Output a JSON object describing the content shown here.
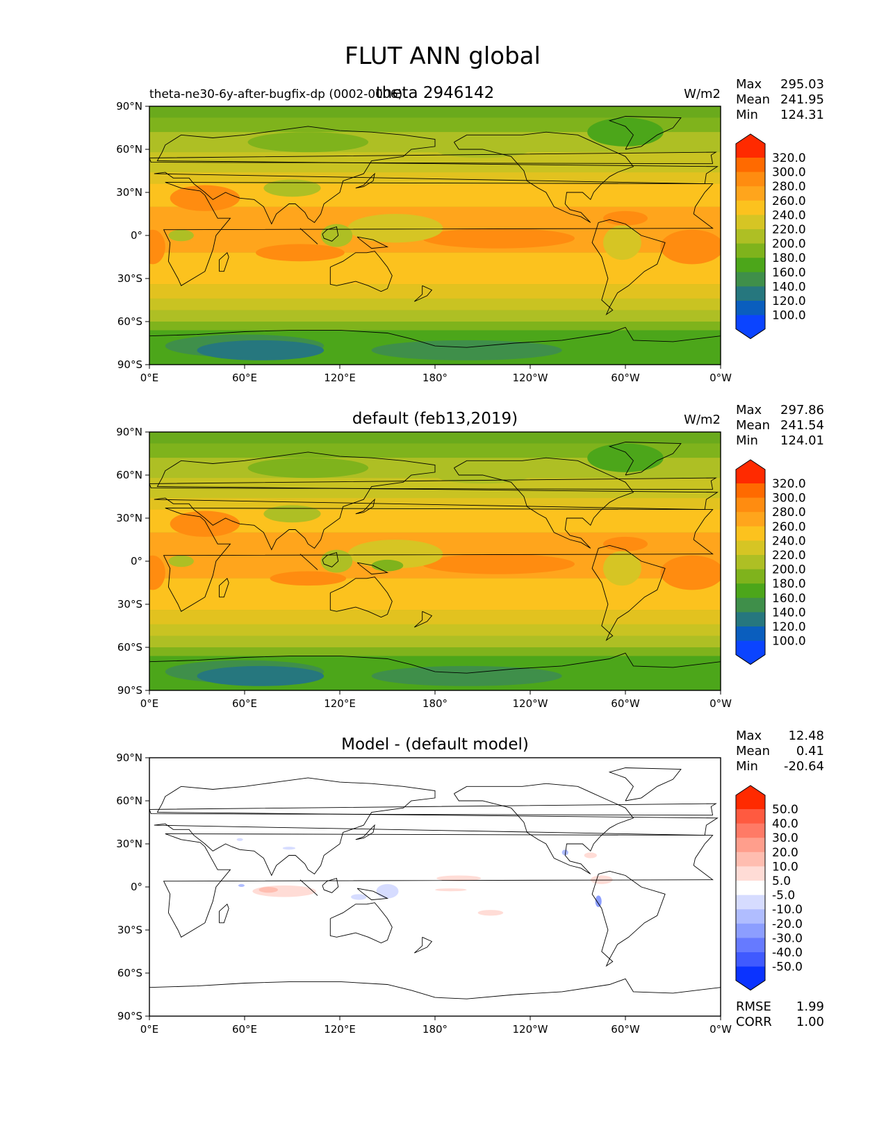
{
  "figure": {
    "title": "FLUT ANN global",
    "x_ticks": [
      "0°E",
      "60°E",
      "120°E",
      "180°",
      "120°W",
      "60°W",
      "0°W"
    ],
    "y_ticks": [
      "90°N",
      "60°N",
      "30°N",
      "0°",
      "30°S",
      "60°S",
      "90°S"
    ]
  },
  "panels": [
    {
      "kind": "field",
      "left_title": "theta-ne30-6y-after-bugfix-dp (0002-0006)",
      "center_title": "theta 2946142",
      "units": "W/m2",
      "stats": [
        {
          "label": "Max",
          "value": "295.03"
        },
        {
          "label": "Mean",
          "value": "241.95"
        },
        {
          "label": "Min",
          "value": "124.31"
        }
      ],
      "colorbar": {
        "labels": [
          "320.0",
          "300.0",
          "280.0",
          "260.0",
          "240.0",
          "220.0",
          "200.0",
          "180.0",
          "160.0",
          "140.0",
          "120.0",
          "100.0"
        ],
        "colors": [
          "#ff2a00",
          "#ff6a00",
          "#ff8c10",
          "#ffa51c",
          "#fcc21e",
          "#d6c524",
          "#aebf24",
          "#7fb31c",
          "#4ca61a",
          "#3f8f4a",
          "#26777e",
          "#0a5ebe",
          "#0b44ff"
        ]
      },
      "map": {
        "default": "#aebf24",
        "bands": [
          {
            "lat": [
              90,
              82
            ],
            "color": "#6aaa1c"
          },
          {
            "lat": [
              82,
              72
            ],
            "color": "#7fb31c"
          },
          {
            "lat": [
              72,
              58
            ],
            "color": "#aebf24"
          },
          {
            "lat": [
              58,
              44
            ],
            "color": "#c9c322"
          },
          {
            "lat": [
              44,
              36
            ],
            "color": "#e2c21f"
          },
          {
            "lat": [
              36,
              20
            ],
            "color": "#fcc21e"
          },
          {
            "lat": [
              20,
              -12
            ],
            "color": "#ffa51c"
          },
          {
            "lat": [
              -12,
              -34
            ],
            "color": "#fcc21e"
          },
          {
            "lat": [
              -34,
              -44
            ],
            "color": "#e2c21f"
          },
          {
            "lat": [
              -44,
              -52
            ],
            "color": "#c9c322"
          },
          {
            "lat": [
              -52,
              -60
            ],
            "color": "#aebf24"
          },
          {
            "lat": [
              -60,
              -66
            ],
            "color": "#7fb31c"
          },
          {
            "lat": [
              -66,
              -90
            ],
            "color": "#4ca61a"
          }
        ],
        "blobs": [
          {
            "lon": 220,
            "lat": -2,
            "rlon": 48,
            "rlat": 7,
            "color": "#ff8c10"
          },
          {
            "lon": 342,
            "lat": -8,
            "rlon": 20,
            "rlat": 12,
            "color": "#ff8c10"
          },
          {
            "lon": 2,
            "lat": -8,
            "rlon": 8,
            "rlat": 12,
            "color": "#ff8c10"
          },
          {
            "lon": 95,
            "lat": -12,
            "rlon": 28,
            "rlat": 6,
            "color": "#ff8c10"
          },
          {
            "lon": 35,
            "lat": 26,
            "rlon": 22,
            "rlat": 9,
            "color": "#ff8c10"
          },
          {
            "lon": 300,
            "lat": 12,
            "rlon": 14,
            "rlat": 5,
            "color": "#ff8c10"
          },
          {
            "lon": 155,
            "lat": 5,
            "rlon": 30,
            "rlat": 10,
            "color": "#d6c524"
          },
          {
            "lon": 118,
            "lat": 0,
            "rlon": 10,
            "rlat": 8,
            "color": "#aebf24"
          },
          {
            "lon": 298,
            "lat": -5,
            "rlon": 12,
            "rlat": 12,
            "color": "#d6c524"
          },
          {
            "lon": 90,
            "lat": 33,
            "rlon": 18,
            "rlat": 6,
            "color": "#aebf24"
          },
          {
            "lon": 300,
            "lat": 72,
            "rlon": 24,
            "rlat": 10,
            "color": "#4ca61a"
          },
          {
            "lon": 100,
            "lat": 65,
            "rlon": 38,
            "rlat": 7,
            "color": "#7fb31c"
          },
          {
            "lon": 210,
            "lat": 60,
            "rlon": 30,
            "rlat": 6,
            "color": "#aebf24"
          },
          {
            "lon": 60,
            "lat": -77,
            "rlon": 50,
            "rlat": 8,
            "color": "#3f8f4a"
          },
          {
            "lon": 70,
            "lat": -80,
            "rlon": 40,
            "rlat": 7,
            "color": "#26777e"
          },
          {
            "lon": 200,
            "lat": -80,
            "rlon": 60,
            "rlat": 7,
            "color": "#3f8f4a"
          },
          {
            "lon": 20,
            "lat": 0,
            "rlon": 8,
            "rlat": 4,
            "color": "#aebf24"
          }
        ]
      }
    },
    {
      "kind": "field",
      "left_title": "",
      "center_title": "default (feb13,2019)",
      "units": "W/m2",
      "stats": [
        {
          "label": "Max",
          "value": "297.86"
        },
        {
          "label": "Mean",
          "value": "241.54"
        },
        {
          "label": "Min",
          "value": "124.01"
        }
      ],
      "colorbar": {
        "labels": [
          "320.0",
          "300.0",
          "280.0",
          "260.0",
          "240.0",
          "220.0",
          "200.0",
          "180.0",
          "160.0",
          "140.0",
          "120.0",
          "100.0"
        ],
        "colors": [
          "#ff2a00",
          "#ff6a00",
          "#ff8c10",
          "#ffa51c",
          "#fcc21e",
          "#d6c524",
          "#aebf24",
          "#7fb31c",
          "#4ca61a",
          "#3f8f4a",
          "#26777e",
          "#0a5ebe",
          "#0b44ff"
        ]
      },
      "map": {
        "default": "#aebf24",
        "bands": [
          {
            "lat": [
              90,
              82
            ],
            "color": "#6aaa1c"
          },
          {
            "lat": [
              82,
              72
            ],
            "color": "#7fb31c"
          },
          {
            "lat": [
              72,
              58
            ],
            "color": "#aebf24"
          },
          {
            "lat": [
              58,
              44
            ],
            "color": "#c9c322"
          },
          {
            "lat": [
              44,
              36
            ],
            "color": "#e2c21f"
          },
          {
            "lat": [
              36,
              20
            ],
            "color": "#fcc21e"
          },
          {
            "lat": [
              20,
              -12
            ],
            "color": "#ffa51c"
          },
          {
            "lat": [
              -12,
              -34
            ],
            "color": "#fcc21e"
          },
          {
            "lat": [
              -34,
              -44
            ],
            "color": "#e2c21f"
          },
          {
            "lat": [
              -44,
              -52
            ],
            "color": "#c9c322"
          },
          {
            "lat": [
              -52,
              -60
            ],
            "color": "#aebf24"
          },
          {
            "lat": [
              -60,
              -66
            ],
            "color": "#7fb31c"
          },
          {
            "lat": [
              -66,
              -90
            ],
            "color": "#4ca61a"
          }
        ],
        "blobs": [
          {
            "lon": 220,
            "lat": -2,
            "rlon": 48,
            "rlat": 7,
            "color": "#ff8c10"
          },
          {
            "lon": 342,
            "lat": -8,
            "rlon": 20,
            "rlat": 12,
            "color": "#ff8c10"
          },
          {
            "lon": 2,
            "lat": -8,
            "rlon": 8,
            "rlat": 12,
            "color": "#ff8c10"
          },
          {
            "lon": 100,
            "lat": -12,
            "rlon": 24,
            "rlat": 5,
            "color": "#ff8c10"
          },
          {
            "lon": 35,
            "lat": 26,
            "rlon": 22,
            "rlat": 9,
            "color": "#ff8c10"
          },
          {
            "lon": 300,
            "lat": 12,
            "rlon": 14,
            "rlat": 5,
            "color": "#ff8c10"
          },
          {
            "lon": 155,
            "lat": 5,
            "rlon": 30,
            "rlat": 10,
            "color": "#d6c524"
          },
          {
            "lon": 150,
            "lat": -3,
            "rlon": 10,
            "rlat": 4,
            "color": "#7fb31c"
          },
          {
            "lon": 118,
            "lat": 0,
            "rlon": 10,
            "rlat": 8,
            "color": "#aebf24"
          },
          {
            "lon": 298,
            "lat": -5,
            "rlon": 12,
            "rlat": 12,
            "color": "#d6c524"
          },
          {
            "lon": 90,
            "lat": 33,
            "rlon": 18,
            "rlat": 6,
            "color": "#aebf24"
          },
          {
            "lon": 300,
            "lat": 72,
            "rlon": 24,
            "rlat": 10,
            "color": "#4ca61a"
          },
          {
            "lon": 100,
            "lat": 65,
            "rlon": 38,
            "rlat": 7,
            "color": "#7fb31c"
          },
          {
            "lon": 210,
            "lat": 60,
            "rlon": 30,
            "rlat": 6,
            "color": "#aebf24"
          },
          {
            "lon": 60,
            "lat": -77,
            "rlon": 50,
            "rlat": 8,
            "color": "#3f8f4a"
          },
          {
            "lon": 70,
            "lat": -80,
            "rlon": 40,
            "rlat": 7,
            "color": "#26777e"
          },
          {
            "lon": 200,
            "lat": -80,
            "rlon": 60,
            "rlat": 7,
            "color": "#3f8f4a"
          },
          {
            "lon": 20,
            "lat": 0,
            "rlon": 8,
            "rlat": 4,
            "color": "#aebf24"
          }
        ]
      }
    },
    {
      "kind": "diff",
      "left_title": "",
      "center_title": "Model - (default model)",
      "units": "",
      "stats": [
        {
          "label": "Max",
          "value": "12.48"
        },
        {
          "label": "Mean",
          "value": "0.41"
        },
        {
          "label": "Min",
          "value": "-20.64"
        }
      ],
      "colorbar": {
        "labels": [
          "50.0",
          "40.0",
          "30.0",
          "20.0",
          "10.0",
          "5.0",
          "-5.0",
          "-10.0",
          "-20.0",
          "-30.0",
          "-40.0",
          "-50.0"
        ],
        "colors": [
          "#ff2a00",
          "#ff5a40",
          "#ff7a66",
          "#ff9e8c",
          "#ffbdb0",
          "#ffdcd6",
          "#ffffff",
          "#d6dcff",
          "#b0bdff",
          "#8c9eff",
          "#667aff",
          "#405aff",
          "#0b33ff"
        ]
      },
      "map": {
        "default": "#ffffff",
        "bands": [],
        "blobs": [
          {
            "lon": 85,
            "lat": -3,
            "rlon": 20,
            "rlat": 4,
            "color": "#ffdcd6"
          },
          {
            "lon": 75,
            "lat": -2,
            "rlon": 6,
            "rlat": 2,
            "color": "#ffbdb0"
          },
          {
            "lon": 195,
            "lat": 6,
            "rlon": 14,
            "rlat": 2,
            "color": "#ffdcd6"
          },
          {
            "lon": 215,
            "lat": -18,
            "rlon": 8,
            "rlat": 2,
            "color": "#ffdcd6"
          },
          {
            "lon": 285,
            "lat": 5,
            "rlon": 7,
            "rlat": 3,
            "color": "#ffdcd6"
          },
          {
            "lon": 278,
            "lat": 22,
            "rlon": 4,
            "rlat": 2,
            "color": "#ffdcd6"
          },
          {
            "lon": 150,
            "lat": -3,
            "rlon": 7,
            "rlat": 5,
            "color": "#d6dcff"
          },
          {
            "lon": 132,
            "lat": -7,
            "rlon": 5,
            "rlat": 2,
            "color": "#d6dcff"
          },
          {
            "lon": 283,
            "lat": -10,
            "rlon": 2,
            "rlat": 4,
            "color": "#8c9eff"
          },
          {
            "lon": 88,
            "lat": 27,
            "rlon": 4,
            "rlat": 1,
            "color": "#d6dcff"
          },
          {
            "lon": 57,
            "lat": 33,
            "rlon": 2,
            "rlat": 1,
            "color": "#d6dcff"
          },
          {
            "lon": 262,
            "lat": 24,
            "rlon": 2,
            "rlat": 2,
            "color": "#b0bdff"
          },
          {
            "lon": 58,
            "lat": 1,
            "rlon": 2,
            "rlat": 1,
            "color": "#b0bdff"
          },
          {
            "lon": 190,
            "lat": -2,
            "rlon": 10,
            "rlat": 1,
            "color": "#ffdcd6"
          }
        ]
      },
      "error_stats": [
        {
          "label": "RMSE",
          "value": "1.99"
        },
        {
          "label": "CORR",
          "value": "1.00"
        }
      ]
    }
  ]
}
